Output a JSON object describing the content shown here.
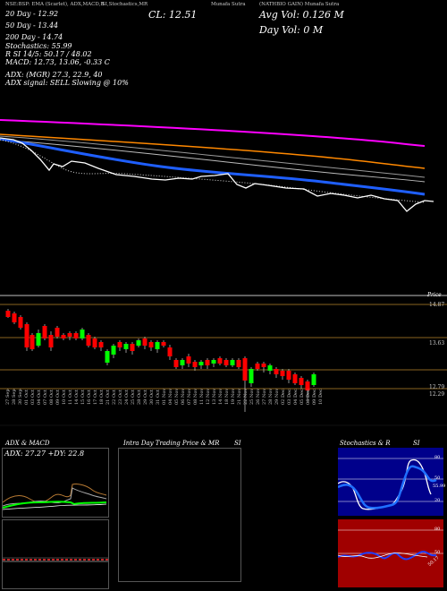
{
  "header": {
    "top_line_left": "NSE:BSP: EMA (Scarlet), ADX,MACD,R",
    "top_line_mid": "SI,Stochastics,MR",
    "top_line_cl_prefix": "CL:",
    "top_line_cl": "12.51",
    "top_line_right_a": "Munafa Sutra",
    "top_line_right_b": "(NATHBIO GAIN) Munafa Sutra",
    "ema20": "20   Day - 12.92",
    "ema50": "50   Day - 13.44",
    "ema200": "200   Day - 14.74",
    "stoch": "Stochastics: 55.99",
    "rsi": "R        SI 14/5: 50.17 / 48.02",
    "macd": "MACD: 12.73,  13.06,  -0.33 C",
    "adx_line": "ADX:                  (MGR) 27.3,  22.9,  40",
    "adx_signal": "ADX  signal: SELL  Slowing @ 10%",
    "cl_label": "CL: 12.51",
    "avg_vol": "Avg Vol: 0.126  M",
    "day_vol": "Day Vol: 0   M"
  },
  "price_axis": {
    "top_label": "Price",
    "labels": [
      "14.87",
      "13.63",
      "12.79",
      "12.29"
    ]
  },
  "date_labels": [
    "27 Sep",
    "28 Sep",
    "30 Sep",
    "01 Oct",
    "03 Oct",
    "04 Oct",
    "07 Oct",
    "08 Oct",
    "09 Oct",
    "10 Oct",
    "11 Oct",
    "14 Oct",
    "15 Oct",
    "16 Oct",
    "17 Oct",
    "18 Oct",
    "21 Oct",
    "22 Oct",
    "23 Oct",
    "24 Oct",
    "25 Oct",
    "28 Oct",
    "29 Oct",
    "30 Oct",
    "31 Oct",
    "01 Nov",
    "04 Nov",
    "05 Nov",
    "06 Nov",
    "07 Nov",
    "08 Nov",
    "11 Nov",
    "12 Nov",
    "13 Nov",
    "14 Nov",
    "18 Nov",
    "19 Nov",
    "21 Nov",
    "22 Nov",
    "25 Nov",
    "26 Nov",
    "27 Nov",
    "28 Nov",
    "29 Nov",
    "02 Dec",
    "03 Dec",
    "04 Dec",
    "05 Dec",
    "06 Dec",
    "09 Dec",
    "10 Dec"
  ],
  "panels": {
    "adx_title": "ADX  & MACD",
    "adx_value": "ADX: 27.27  +DY: 22.8",
    "intra_title": "Intra  Day Trading Price  & MR",
    "intra_title_si": "SI",
    "stoch_title": "Stochastics & R",
    "stoch_title_si": "SI",
    "stoch_axis": [
      "80",
      "50",
      "20"
    ],
    "rsi_axis": [
      "80",
      "50"
    ],
    "rsi_label": "50.17",
    "stoch_label": "55.99"
  },
  "colors": {
    "ema20": "#ffffff",
    "ema50": "#1f5fff",
    "ema200": "#ff7f00",
    "magenta": "#ff00ff",
    "up_candle": "#00ff00",
    "down_candle": "#ff0000",
    "level_line": "#b8862a"
  }
}
